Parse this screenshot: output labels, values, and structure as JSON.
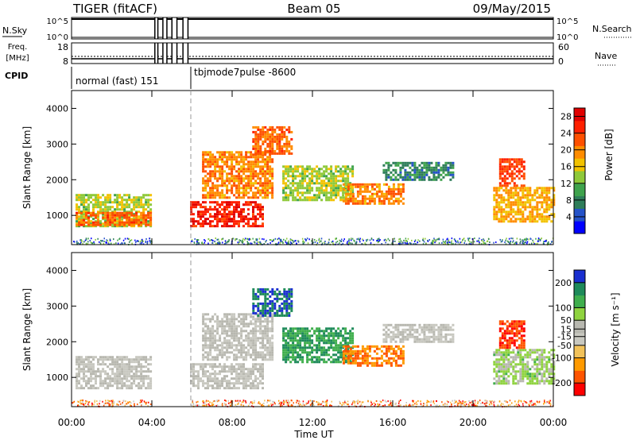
{
  "header": {
    "title": "TIGER (fitACF)",
    "beam": "Beam 05",
    "date": "09/May/2015"
  },
  "status_panels": {
    "nsky_label": "N.Sky",
    "nsearch_label": "N.Search",
    "freq_label": "Freq.",
    "freq_unit": "[MHz]",
    "nave_label": "Nave",
    "cpid_label": "CPID",
    "nsky_ticks": [
      "10^5",
      "10^0"
    ],
    "nsearch_ticks": [
      "10^5",
      "10^0"
    ],
    "freq_ticks": [
      "18",
      "8"
    ],
    "nave_ticks": [
      "60",
      "0"
    ],
    "cpid_segments": [
      {
        "label": "normal (fast) 151",
        "start_hour": 0.0
      },
      {
        "label": "tbjmode7pulse -8600",
        "start_hour": 5.9
      }
    ],
    "gaps_hours": [
      [
        4.15,
        4.3
      ],
      [
        4.55,
        4.75
      ],
      [
        5.0,
        5.25
      ],
      [
        5.55,
        5.8
      ]
    ]
  },
  "chart_data": [
    {
      "type": "heatmap",
      "name": "power",
      "xlabel": "Time UT",
      "ylabel": "Slant Range [km]",
      "xlim": [
        0,
        24
      ],
      "ylim": [
        180,
        4500
      ],
      "x_ticks": [
        "00:00",
        "04:00",
        "08:00",
        "12:00",
        "16:00",
        "20:00",
        "00:00"
      ],
      "y_ticks": [
        1000,
        2000,
        3000,
        4000
      ],
      "colorbar": {
        "label": "Power [dB]",
        "ticks": [
          4,
          8,
          12,
          16,
          20,
          24,
          28
        ],
        "range": [
          0,
          30
        ],
        "colors": [
          "#0000ff",
          "#2452c8",
          "#2e7d5a",
          "#3fa34d",
          "#8fc93a",
          "#f2c200",
          "#ff8c00",
          "#ff5000",
          "#ff2000",
          "#e00000"
        ]
      },
      "echo_regions": [
        {
          "t": [
            0.2,
            4.0
          ],
          "r": [
            700,
            1600
          ],
          "value": 14
        },
        {
          "t": [
            0.2,
            4.0
          ],
          "r": [
            700,
            1100
          ],
          "value": 22
        },
        {
          "t": [
            5.9,
            9.5
          ],
          "r": [
            700,
            1400
          ],
          "value": 26
        },
        {
          "t": [
            6.5,
            10.0
          ],
          "r": [
            1500,
            2800
          ],
          "value": 20
        },
        {
          "t": [
            9.0,
            11.0
          ],
          "r": [
            2700,
            3500
          ],
          "value": 22
        },
        {
          "t": [
            10.5,
            14.0
          ],
          "r": [
            1400,
            2400
          ],
          "value": 14
        },
        {
          "t": [
            13.5,
            16.5
          ],
          "r": [
            1300,
            1900
          ],
          "value": 20
        },
        {
          "t": [
            15.5,
            19.0
          ],
          "r": [
            2000,
            2500
          ],
          "value": 8
        },
        {
          "t": [
            21.0,
            24.0
          ],
          "r": [
            800,
            1800
          ],
          "value": 18
        },
        {
          "t": [
            21.3,
            22.5
          ],
          "r": [
            1800,
            2600
          ],
          "value": 24
        }
      ]
    },
    {
      "type": "heatmap",
      "name": "velocity",
      "xlabel": "Time UT",
      "ylabel": "Slant Range [km]",
      "xlim": [
        0,
        24
      ],
      "ylim": [
        180,
        4500
      ],
      "x_ticks": [
        "00:00",
        "04:00",
        "08:00",
        "12:00",
        "16:00",
        "20:00",
        "00:00"
      ],
      "y_ticks": [
        1000,
        2000,
        3000,
        4000
      ],
      "colorbar": {
        "label": "Velocity [m s⁻¹]",
        "ticks": [
          -200,
          -100,
          -50,
          -15,
          15,
          50,
          100,
          200
        ],
        "range": [
          -250,
          250
        ],
        "colors": [
          "#ff0000",
          "#ff5500",
          "#ff9a00",
          "#f2c25a",
          "#c8c8c0",
          "#b8b8b0",
          "#8fd33f",
          "#3fae4d",
          "#1e8a5a",
          "#1a2fd0"
        ]
      },
      "echo_regions": [
        {
          "t": [
            0.2,
            4.0
          ],
          "r": [
            700,
            1600
          ],
          "value": 0
        },
        {
          "t": [
            5.9,
            9.5
          ],
          "r": [
            700,
            1400
          ],
          "value": -5
        },
        {
          "t": [
            6.5,
            10.0
          ],
          "r": [
            1500,
            2800
          ],
          "value": 5
        },
        {
          "t": [
            9.0,
            11.0
          ],
          "r": [
            2700,
            3500
          ],
          "value": 200
        },
        {
          "t": [
            10.5,
            14.0
          ],
          "r": [
            1400,
            2400
          ],
          "value": 150
        },
        {
          "t": [
            13.5,
            16.5
          ],
          "r": [
            1300,
            1900
          ],
          "value": -150
        },
        {
          "t": [
            15.5,
            19.0
          ],
          "r": [
            2000,
            2500
          ],
          "value": 0
        },
        {
          "t": [
            21.0,
            24.0
          ],
          "r": [
            800,
            1800
          ],
          "value": 60
        },
        {
          "t": [
            21.3,
            22.5
          ],
          "r": [
            1800,
            2600
          ],
          "value": -200
        }
      ]
    }
  ]
}
